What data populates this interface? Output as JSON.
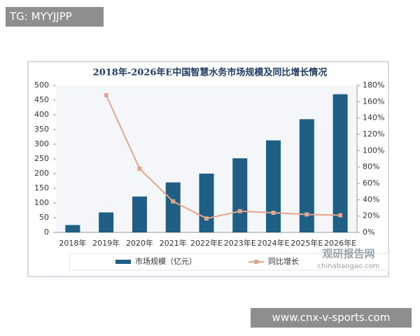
{
  "overlays": {
    "top_tag": "TG: MYYJJPP",
    "bottom_tag": "www.cnx-v-sports.com",
    "watermark": "观研报告网",
    "watermark_url": "chinabaogao.com"
  },
  "chart_data": {
    "type": "bar",
    "title": "2018年-2026年E中国智慧水务市场规模及同比增长情况",
    "categories": [
      "2018年",
      "2019年",
      "2020年",
      "2021年",
      "2022年E",
      "2023年E",
      "2024年E",
      "2025年E",
      "2026年E"
    ],
    "series": [
      {
        "name": "市场规模（亿元）",
        "type": "bar",
        "color": "#1f5f86",
        "axis": "y",
        "values": [
          25,
          68,
          122,
          170,
          200,
          252,
          313,
          385,
          470
        ]
      },
      {
        "name": "同比增长",
        "type": "line",
        "color": "#e5a58a",
        "axis": "y2",
        "values": [
          null,
          168,
          78,
          38,
          17,
          26,
          24,
          22,
          21
        ]
      }
    ],
    "ylim": [
      0,
      500
    ],
    "yticks": [
      0,
      50,
      100,
      150,
      200,
      250,
      300,
      350,
      400,
      450,
      500
    ],
    "y2lim": [
      0,
      180
    ],
    "y2ticks": [
      {
        "value": 0,
        "label": "0%"
      },
      {
        "value": 20,
        "label": "20%"
      },
      {
        "value": 40,
        "label": "40%"
      },
      {
        "value": 60,
        "label": "60%"
      },
      {
        "value": 80,
        "label": "80%"
      },
      {
        "value": 100,
        "label": "100%"
      },
      {
        "value": 120,
        "label": "120%"
      },
      {
        "value": 140,
        "label": "140%"
      },
      {
        "value": 160,
        "label": "160%"
      },
      {
        "value": 180,
        "label": "180%"
      }
    ],
    "grid": false
  }
}
